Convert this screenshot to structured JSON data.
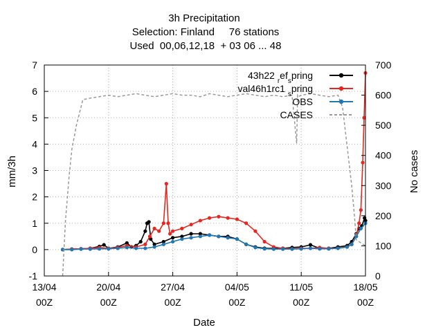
{
  "chart_data": {
    "type": "line",
    "title": {
      "line1": "3h Precipitation",
      "line2": "Selection: Finland     76 stations",
      "line3": "Used  00,06,12,18  + 03 06 ... 48"
    },
    "xlabel": "Date",
    "ylabel": "mm/3h",
    "y2label": "No cases",
    "xlim": [
      "2021-04-13T00:00",
      "2021-05-18T00:00"
    ],
    "ylim": [
      -1,
      7
    ],
    "y2lim": [
      0,
      700
    ],
    "xticks": [
      {
        "label1": "13/04",
        "label2": "00Z",
        "day": 0
      },
      {
        "label1": "20/04",
        "label2": "00Z",
        "day": 7
      },
      {
        "label1": "27/04",
        "label2": "00Z",
        "day": 14
      },
      {
        "label1": "04/05",
        "label2": "00Z",
        "day": 21
      },
      {
        "label1": "11/05",
        "label2": "00Z",
        "day": 28
      },
      {
        "label1": "18/05",
        "label2": "00Z",
        "day": 35
      }
    ],
    "yticks": [
      "-1",
      "0",
      "1",
      "2",
      "3",
      "4",
      "5",
      "6",
      "7"
    ],
    "y2ticks": [
      "0",
      "100",
      "200",
      "300",
      "400",
      "500",
      "600",
      "700"
    ],
    "grid": true,
    "legend_position": "top-right",
    "series": [
      {
        "name_parts": [
          "43h22",
          "r",
          "ef",
          "s",
          "pring"
        ],
        "color": "#000000",
        "axis": "y",
        "style": "line-points",
        "x": [
          2.0,
          3.0,
          4.0,
          5.0,
          6.0,
          6.5,
          7.0,
          8.0,
          9.0,
          9.5,
          10.0,
          10.5,
          11.0,
          11.2,
          11.4,
          11.6,
          12.0,
          13.0,
          14.0,
          15.0,
          16.0,
          17.0,
          18.0,
          19.0,
          20.0,
          21.0,
          22.0,
          23.0,
          24.0,
          25.0,
          26.0,
          27.0,
          28.0,
          29.0,
          30.0,
          31.0,
          32.0,
          33.0,
          33.5,
          34.0,
          34.3,
          34.6,
          34.9,
          35.0
        ],
        "y": [
          0.0,
          0.02,
          0.03,
          0.05,
          0.12,
          0.18,
          0.05,
          0.1,
          0.25,
          0.1,
          0.15,
          0.3,
          0.7,
          1.0,
          1.05,
          0.4,
          0.2,
          0.3,
          0.45,
          0.5,
          0.6,
          0.6,
          0.55,
          0.5,
          0.5,
          0.4,
          0.2,
          0.1,
          0.05,
          0.05,
          0.05,
          0.08,
          0.1,
          0.18,
          0.05,
          0.05,
          0.1,
          0.15,
          0.3,
          0.6,
          0.8,
          0.9,
          1.2,
          1.1
        ]
      },
      {
        "name_parts": [
          "val46h1rc1",
          "",
          "",
          "s",
          "pring"
        ],
        "color": "#e8251f",
        "axis": "y",
        "style": "line-points",
        "x": [
          2.0,
          3.0,
          4.0,
          5.0,
          6.0,
          7.0,
          8.0,
          9.0,
          10.0,
          11.0,
          11.5,
          12.0,
          12.5,
          13.0,
          13.3,
          13.5,
          13.7,
          14.0,
          15.0,
          16.0,
          17.0,
          18.0,
          19.0,
          20.0,
          21.0,
          22.0,
          23.0,
          24.0,
          25.0,
          26.0,
          27.0,
          28.0,
          29.0,
          30.0,
          31.0,
          32.0,
          33.0,
          33.5,
          34.0,
          34.3,
          34.5,
          34.7,
          34.85,
          35.0
        ],
        "y": [
          0.0,
          0.02,
          0.03,
          0.05,
          0.08,
          0.05,
          0.08,
          0.15,
          0.1,
          0.2,
          0.5,
          0.8,
          0.7,
          1.0,
          2.5,
          1.0,
          0.6,
          0.7,
          0.8,
          0.95,
          1.1,
          1.2,
          1.25,
          1.2,
          1.15,
          1.0,
          0.7,
          0.3,
          0.1,
          0.05,
          0.03,
          0.05,
          0.05,
          0.08,
          0.05,
          0.05,
          0.1,
          0.2,
          0.5,
          1.0,
          1.5,
          3.3,
          5.0,
          6.7
        ]
      },
      {
        "name_parts": [
          "OBS",
          "",
          "",
          "",
          ""
        ],
        "color": "#1f77b4",
        "axis": "y",
        "style": "line-points",
        "x": [
          2.0,
          3.0,
          4.0,
          5.0,
          6.0,
          7.0,
          8.0,
          9.0,
          10.0,
          11.0,
          12.0,
          13.0,
          14.0,
          15.0,
          16.0,
          17.0,
          18.0,
          19.0,
          20.0,
          21.0,
          22.0,
          23.0,
          24.0,
          25.0,
          26.0,
          27.0,
          28.0,
          29.0,
          30.0,
          31.0,
          32.0,
          33.0,
          33.5,
          34.0,
          34.5,
          35.0
        ],
        "y": [
          0.0,
          0.0,
          0.02,
          0.02,
          0.03,
          0.03,
          0.05,
          0.08,
          0.05,
          0.05,
          0.1,
          0.2,
          0.3,
          0.4,
          0.45,
          0.5,
          0.55,
          0.5,
          0.45,
          0.4,
          0.2,
          0.08,
          0.03,
          0.02,
          0.02,
          0.02,
          0.03,
          0.05,
          0.03,
          0.03,
          0.05,
          0.1,
          0.2,
          0.5,
          0.8,
          1.0
        ]
      },
      {
        "name_parts": [
          "CASES",
          "",
          "",
          "",
          ""
        ],
        "color": "#999999",
        "axis": "y2",
        "style": "dashed",
        "x": [
          2.0,
          2.3,
          2.7,
          3.0,
          3.5,
          4.0,
          4.2,
          5.0,
          6.0,
          7.0,
          8.0,
          9.0,
          10.0,
          11.0,
          12.0,
          13.0,
          14.0,
          15.0,
          16.0,
          17.0,
          18.0,
          19.0,
          20.0,
          21.0,
          22.0,
          23.0,
          24.0,
          25.0,
          26.0,
          27.0,
          27.5,
          27.6,
          27.7,
          28.0,
          29.0,
          30.0,
          31.0,
          32.0,
          32.5,
          33.0,
          33.5,
          33.8,
          34.0,
          34.5,
          35.0
        ],
        "y": [
          0,
          180,
          330,
          420,
          500,
          560,
          585,
          590,
          595,
          600,
          595,
          600,
          605,
          600,
          595,
          600,
          605,
          600,
          600,
          595,
          605,
          600,
          595,
          600,
          605,
          600,
          595,
          600,
          595,
          600,
          440,
          600,
          595,
          600,
          605,
          600,
          595,
          600,
          560,
          430,
          300,
          200,
          120,
          110,
          100
        ]
      }
    ]
  }
}
